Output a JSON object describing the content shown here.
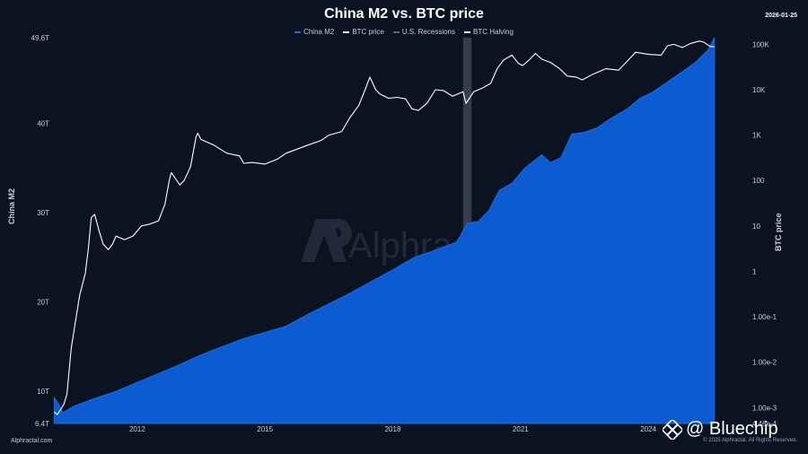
{
  "header": {
    "title": "China M2 vs. BTC price",
    "date": "2026-01-25"
  },
  "legend": [
    {
      "label": "China M2",
      "color": "#1e6be6"
    },
    {
      "label": "BTC price",
      "color": "#ffffff"
    },
    {
      "label": "U.S. Recessions",
      "color": "#5b6270"
    },
    {
      "label": "BTC Halving",
      "color": "#ffffff"
    }
  ],
  "axes": {
    "left_title": "China M2",
    "right_title": "BTC price",
    "left_ticks": [
      "6.4T",
      "10T",
      "20T",
      "30T",
      "40T",
      "49.6T"
    ],
    "right_ticks": [
      "4.46e-4",
      "1.00e-3",
      "1.00e-2",
      "1.00e-1",
      "1",
      "10",
      "100",
      "1K",
      "10K",
      "100K"
    ],
    "x_ticks": [
      "2012",
      "2015",
      "2018",
      "2021",
      "2024"
    ]
  },
  "watermark": "Alphractal",
  "footer": {
    "source": "Alphractal.com",
    "copyright": "© 2025 Alphractal. All Rights Reserved.",
    "brand": "@ Bluechip"
  },
  "chart_data": {
    "type": "area",
    "title": "China M2 vs. BTC price",
    "x_range": [
      2010.5,
      2026.9
    ],
    "series": [
      {
        "name": "China M2",
        "type": "area",
        "axis": "left",
        "unit": "T",
        "ylim": [
          6.4,
          49.6
        ],
        "x": [
          2010.55,
          2010.65,
          2010.75,
          2011.0,
          2011.5,
          2012.0,
          2012.5,
          2013.0,
          2013.5,
          2014.0,
          2014.5,
          2015.0,
          2015.5,
          2016.0,
          2016.5,
          2017.0,
          2017.5,
          2018.0,
          2018.5,
          2019.0,
          2019.5,
          2020.0,
          2020.25,
          2020.5,
          2020.75,
          2021.0,
          2021.3,
          2021.6,
          2022.0,
          2022.2,
          2022.45,
          2022.7,
          2023.0,
          2023.3,
          2023.6,
          2024.0,
          2024.3,
          2024.6,
          2025.0,
          2025.3,
          2025.6,
          2025.9,
          2026.05
        ],
        "values": [
          9.3,
          8.6,
          7.6,
          8.3,
          9.2,
          10.0,
          11.0,
          12.0,
          13.0,
          14.1,
          15.0,
          15.9,
          16.6,
          17.3,
          18.6,
          19.8,
          21.0,
          22.3,
          23.6,
          25.0,
          25.8,
          26.7,
          28.8,
          29.0,
          30.2,
          32.5,
          33.3,
          35.0,
          36.5,
          35.6,
          36.2,
          38.8,
          39.0,
          39.5,
          40.5,
          41.6,
          42.8,
          43.5,
          44.8,
          45.8,
          46.8,
          48.2,
          49.6
        ]
      },
      {
        "name": "BTC price",
        "type": "line",
        "axis": "right",
        "scale": "log",
        "ylim": [
          0.000446,
          140000
        ],
        "x": [
          2010.55,
          2010.62,
          2010.7,
          2010.78,
          2010.85,
          2010.95,
          2011.05,
          2011.15,
          2011.28,
          2011.35,
          2011.42,
          2011.5,
          2011.6,
          2011.7,
          2011.82,
          2011.92,
          2012.0,
          2012.2,
          2012.4,
          2012.6,
          2012.8,
          2013.0,
          2013.15,
          2013.25,
          2013.3,
          2013.5,
          2013.6,
          2013.75,
          2013.88,
          2013.92,
          2014.0,
          2014.3,
          2014.6,
          2014.9,
          2015.0,
          2015.2,
          2015.5,
          2015.8,
          2016.0,
          2016.5,
          2016.8,
          2017.0,
          2017.3,
          2017.5,
          2017.7,
          2017.85,
          2017.96,
          2018.1,
          2018.2,
          2018.4,
          2018.6,
          2018.8,
          2018.95,
          2019.1,
          2019.3,
          2019.5,
          2019.7,
          2019.9,
          2020.15,
          2020.22,
          2020.4,
          2020.6,
          2020.8,
          2020.95,
          2021.1,
          2021.3,
          2021.45,
          2021.55,
          2021.7,
          2021.85,
          2022.0,
          2022.2,
          2022.4,
          2022.6,
          2022.8,
          2022.95,
          2023.2,
          2023.5,
          2023.8,
          2024.0,
          2024.2,
          2024.5,
          2024.8,
          2024.95,
          2025.1,
          2025.3,
          2025.5,
          2025.7,
          2025.8,
          2025.95,
          2026.05
        ],
        "values": [
          0.0008,
          0.0007,
          0.0009,
          0.0012,
          0.002,
          0.02,
          0.08,
          0.3,
          0.9,
          3,
          15,
          18,
          8,
          4,
          3,
          4,
          6,
          5,
          6,
          10,
          11,
          13,
          30,
          100,
          150,
          80,
          100,
          200,
          900,
          1100,
          800,
          600,
          400,
          350,
          240,
          250,
          230,
          300,
          400,
          600,
          750,
          1000,
          1200,
          2500,
          4500,
          10000,
          19000,
          10000,
          8000,
          6500,
          6800,
          6300,
          3800,
          3500,
          5000,
          10000,
          9500,
          7200,
          9000,
          5000,
          9000,
          10800,
          13800,
          29000,
          45000,
          58000,
          38000,
          34000,
          45000,
          63000,
          47000,
          40000,
          30000,
          20000,
          19000,
          16500,
          22000,
          29000,
          27000,
          42000,
          67000,
          60000,
          58000,
          93000,
          100000,
          85000,
          105000,
          118000,
          112000,
          90000,
          88000
        ]
      }
    ],
    "recessions": [
      [
        2020.15,
        2020.35
      ]
    ],
    "grid": false
  }
}
